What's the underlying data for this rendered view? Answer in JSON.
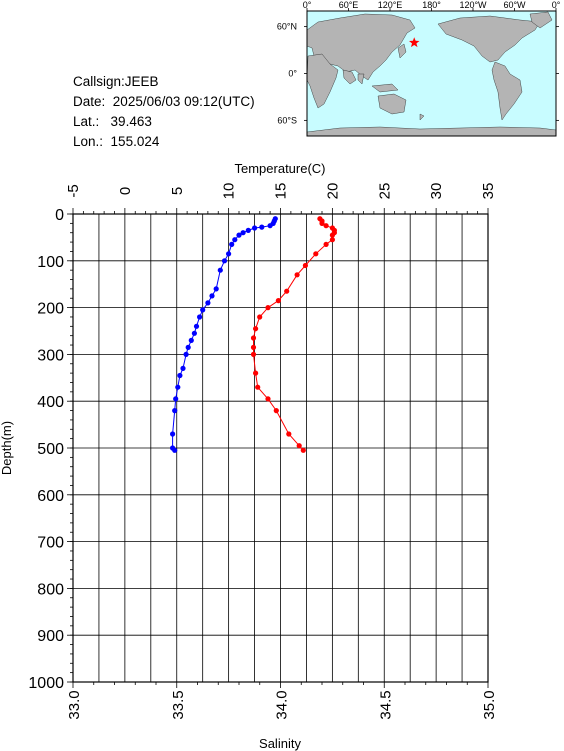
{
  "meta": {
    "callsign_label": "Callsign:",
    "callsign": "JEEB",
    "date_label": "Date:",
    "date": "2025/06/03 09:12(UTC)",
    "lat_label": "Lat.:",
    "lat": "39.463",
    "lon_label": "Lon.:",
    "lon": "155.024"
  },
  "map": {
    "lon_ticks": [
      "0°",
      "60°E",
      "120°E",
      "180°",
      "120°W",
      "60°W",
      "0°"
    ],
    "lat_ticks": [
      "60°N",
      "0°",
      "60°S"
    ],
    "station": {
      "lat": 39.463,
      "lon": 155.024
    },
    "colors": {
      "ocean": "#c8fcff",
      "land": "#b4b4b4",
      "marker": "#ff0000"
    }
  },
  "chart_data": {
    "type": "line",
    "ylabel": "Depth(m)",
    "ylim": [
      1000,
      0
    ],
    "yticks": [
      "0",
      "100",
      "200",
      "300",
      "400",
      "500",
      "600",
      "700",
      "800",
      "900",
      "1000"
    ],
    "top_axis": {
      "label": "Temperature(C)",
      "range": [
        -5,
        35
      ],
      "ticks": [
        "-5",
        "0",
        "5",
        "10",
        "15",
        "20",
        "25",
        "30",
        "35"
      ]
    },
    "bottom_axis": {
      "label": "Salinity",
      "range": [
        33.0,
        35.0
      ],
      "ticks": [
        "33.0",
        "33.5",
        "34.0",
        "34.5",
        "35.0"
      ]
    },
    "grid": true,
    "series": [
      {
        "axis": "top",
        "color": "#0000ff",
        "points": [
          [
            14.5,
            10
          ],
          [
            14.4,
            15
          ],
          [
            14.3,
            20
          ],
          [
            14.0,
            25
          ],
          [
            13.2,
            28
          ],
          [
            12.5,
            30
          ],
          [
            11.9,
            35
          ],
          [
            11.4,
            40
          ],
          [
            11.0,
            45
          ],
          [
            10.6,
            55
          ],
          [
            10.3,
            65
          ],
          [
            10.0,
            85
          ],
          [
            9.6,
            100
          ],
          [
            9.2,
            120
          ],
          [
            8.8,
            160
          ],
          [
            8.4,
            175
          ],
          [
            8.0,
            190
          ],
          [
            7.5,
            205
          ],
          [
            7.2,
            220
          ],
          [
            6.9,
            240
          ],
          [
            6.7,
            255
          ],
          [
            6.4,
            270
          ],
          [
            6.1,
            285
          ],
          [
            5.9,
            300
          ],
          [
            5.6,
            330
          ],
          [
            5.3,
            345
          ],
          [
            5.1,
            370
          ],
          [
            4.9,
            395
          ],
          [
            4.8,
            420
          ],
          [
            4.6,
            470
          ],
          [
            4.6,
            500
          ],
          [
            4.8,
            505
          ]
        ]
      },
      {
        "axis": "bottom",
        "color": "#ff0000",
        "points": [
          [
            34.19,
            10
          ],
          [
            34.2,
            15
          ],
          [
            34.2,
            20
          ],
          [
            34.22,
            25
          ],
          [
            34.25,
            30
          ],
          [
            34.26,
            35
          ],
          [
            34.26,
            40
          ],
          [
            34.25,
            45
          ],
          [
            34.25,
            55
          ],
          [
            34.22,
            65
          ],
          [
            34.17,
            85
          ],
          [
            34.12,
            110
          ],
          [
            34.08,
            130
          ],
          [
            34.03,
            165
          ],
          [
            33.99,
            185
          ],
          [
            33.94,
            200
          ],
          [
            33.9,
            220
          ],
          [
            33.88,
            245
          ],
          [
            33.87,
            265
          ],
          [
            33.87,
            285
          ],
          [
            33.87,
            300
          ],
          [
            33.88,
            340
          ],
          [
            33.89,
            370
          ],
          [
            33.94,
            395
          ],
          [
            33.98,
            420
          ],
          [
            34.04,
            470
          ],
          [
            34.09,
            495
          ],
          [
            34.11,
            505
          ]
        ]
      }
    ]
  }
}
